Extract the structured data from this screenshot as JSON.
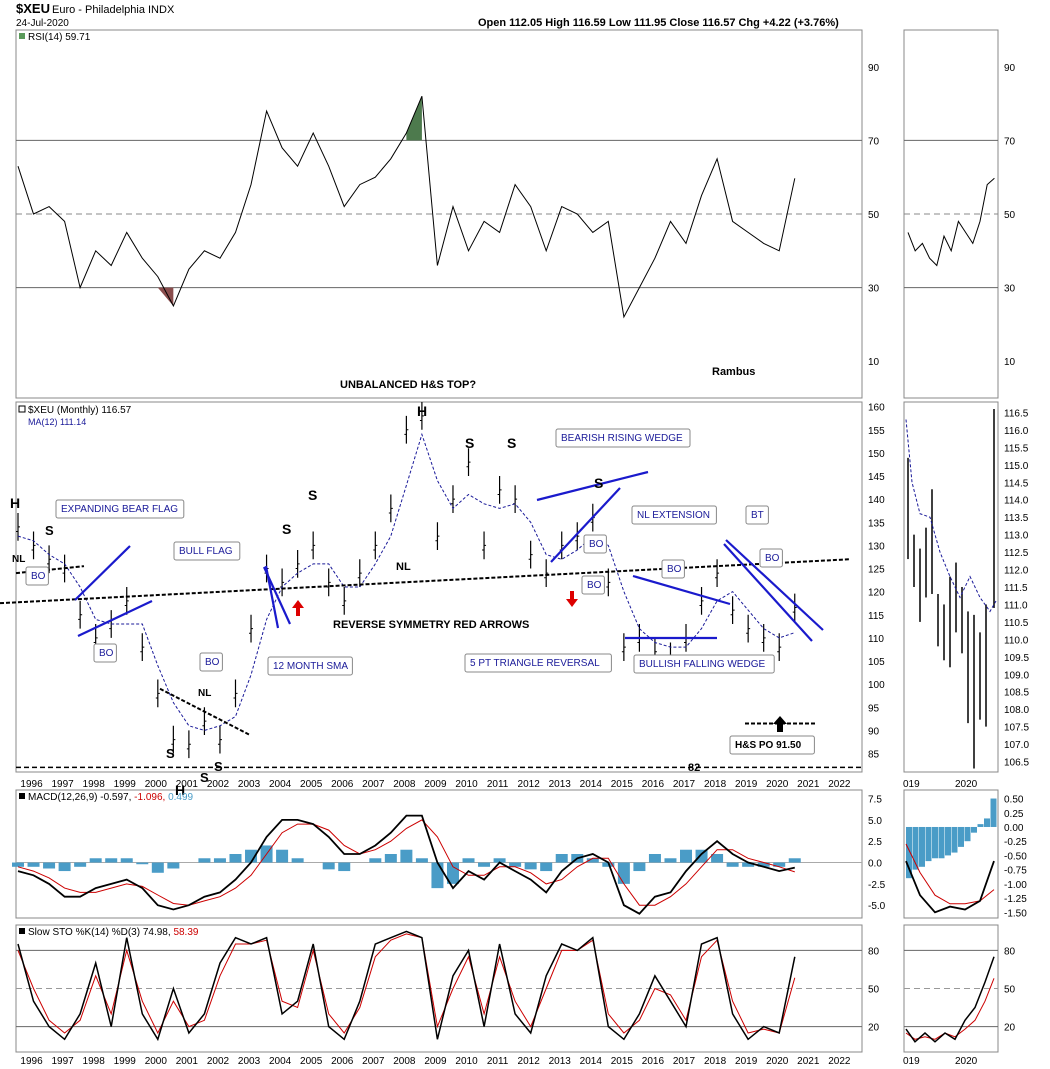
{
  "header": {
    "symbol": "$XEU",
    "name": "Euro - Philadelphia INDX",
    "date": "24-Jul-2020",
    "ohlc": "Open 112.05  High 116.59  Low 111.95  Close 116.57  Chg +4.22 (+3.76%)"
  },
  "chart_data": [
    {
      "type": "line",
      "panel": "rsi",
      "legend": "RSI(14) 59.71",
      "yticks": [
        10,
        30,
        50,
        70,
        90
      ],
      "ylim": [
        0,
        100
      ],
      "overbought": 70,
      "oversold": 30,
      "x": [
        1995.5,
        1996,
        1996.5,
        1997,
        1997.5,
        1998,
        1998.5,
        1999,
        1999.5,
        2000,
        2000.5,
        2001,
        2001.5,
        2002,
        2002.5,
        2003,
        2003.5,
        2004,
        2004.5,
        2005,
        2005.5,
        2006,
        2006.5,
        2007,
        2007.5,
        2008,
        2008.5,
        2009,
        2009.5,
        2010,
        2010.5,
        2011,
        2011.5,
        2012,
        2012.5,
        2013,
        2013.5,
        2014,
        2014.5,
        2015,
        2015.5,
        2016,
        2016.5,
        2017,
        2017.5,
        2018,
        2018.5,
        2019,
        2019.5,
        2020,
        2020.5
      ],
      "values": [
        63,
        50,
        52,
        48,
        30,
        40,
        36,
        45,
        38,
        33,
        25,
        35,
        40,
        38,
        45,
        58,
        78,
        68,
        63,
        72,
        63,
        52,
        58,
        60,
        65,
        72,
        82,
        36,
        52,
        40,
        48,
        45,
        58,
        52,
        40,
        52,
        50,
        45,
        48,
        22,
        30,
        38,
        48,
        42,
        55,
        65,
        48,
        45,
        42,
        40,
        59.71
      ]
    },
    {
      "type": "bar",
      "panel": "price",
      "legend_price": "$XEU (Monthly) 116.57",
      "legend_ma": "MA(12) 111.14",
      "yticks": [
        85,
        90,
        95,
        100,
        105,
        110,
        115,
        120,
        125,
        130,
        135,
        140,
        145,
        150,
        155,
        160
      ],
      "ylim": [
        81,
        161
      ],
      "xticks": [
        "1996",
        "1997",
        "1998",
        "1999",
        "2000",
        "2001",
        "2002",
        "2003",
        "2004",
        "2005",
        "2006",
        "2007",
        "2008",
        "2009",
        "2010",
        "2011",
        "2012",
        "2013",
        "2014",
        "2015",
        "2016",
        "2017",
        "2018",
        "2019",
        "2020",
        "2021",
        "2022"
      ],
      "x": [
        1995.5,
        1996,
        1996.5,
        1997,
        1997.5,
        1998,
        1998.5,
        1999,
        1999.5,
        2000,
        2000.5,
        2001,
        2001.5,
        2002,
        2002.5,
        2003,
        2003.5,
        2004,
        2004.5,
        2005,
        2005.5,
        2006,
        2006.5,
        2007,
        2007.5,
        2008,
        2008.5,
        2009,
        2009.5,
        2010,
        2010.5,
        2011,
        2011.5,
        2012,
        2012.5,
        2013,
        2013.5,
        2014,
        2014.5,
        2015,
        2015.5,
        2016,
        2016.5,
        2017,
        2017.5,
        2018,
        2018.5,
        2019,
        2019.5,
        2020,
        2020.5
      ],
      "values": [
        134,
        130,
        127,
        125,
        115,
        110,
        113,
        118,
        108,
        98,
        88,
        87,
        92,
        88,
        98,
        112,
        125,
        122,
        126,
        130,
        122,
        118,
        124,
        130,
        138,
        155,
        158,
        132,
        140,
        148,
        130,
        142,
        140,
        128,
        124,
        130,
        132,
        136,
        122,
        108,
        110,
        107,
        106,
        110,
        118,
        124,
        116,
        112,
        110,
        108,
        116.57
      ],
      "ma": [
        132,
        131,
        128,
        126,
        121,
        114,
        113,
        113,
        113,
        104,
        96,
        91,
        90,
        91,
        93,
        102,
        114,
        121,
        124,
        126,
        126,
        121,
        121,
        126,
        132,
        143,
        154,
        144,
        138,
        141,
        139,
        138,
        139,
        135,
        128,
        127,
        129,
        132,
        130,
        120,
        112,
        109,
        108,
        108,
        112,
        118,
        120,
        116,
        112,
        110,
        111.14
      ],
      "annotations": [
        {
          "text": "UNBALANCED H&S TOP?"
        },
        {
          "text": "Rambus"
        },
        {
          "text": "H"
        },
        {
          "text": "NL"
        },
        {
          "text": "S"
        },
        {
          "text": "EXPANDING BEAR FLAG"
        },
        {
          "text": "BO"
        },
        {
          "text": "BO"
        },
        {
          "text": "BULL FLAG"
        },
        {
          "text": "BO"
        },
        {
          "text": "NL"
        },
        {
          "text": "S"
        },
        {
          "text": "H"
        },
        {
          "text": "S"
        },
        {
          "text": "S"
        },
        {
          "text": "12 MONTH SMA"
        },
        {
          "text": "S"
        },
        {
          "text": "S"
        },
        {
          "text": "NL"
        },
        {
          "text": "H"
        },
        {
          "text": "S"
        },
        {
          "text": "S"
        },
        {
          "text": "REVERSE SYMMETRY RED ARROWS"
        },
        {
          "text": "BEARISH RISING WEDGE"
        },
        {
          "text": "S"
        },
        {
          "text": "BO"
        },
        {
          "text": "BO"
        },
        {
          "text": "NL EXTENSION"
        },
        {
          "text": "BO"
        },
        {
          "text": "BT"
        },
        {
          "text": "BO"
        },
        {
          "text": "5 PT TRIANGLE REVERSAL"
        },
        {
          "text": "BULLISH FALLING WEDGE"
        },
        {
          "text": "82"
        },
        {
          "text": "H&S PO 91.50"
        }
      ]
    },
    {
      "type": "line",
      "panel": "macd",
      "legend_a": "MACD(12,26,9) -0.597,",
      "legend_b": "-1.096,",
      "legend_c": "0.499",
      "yticks": [
        -5.0,
        -2.5,
        0.0,
        2.5,
        5.0,
        7.5
      ],
      "ylim": [
        -6.5,
        8.5
      ],
      "x": [
        1995.5,
        1996,
        1996.5,
        1997,
        1997.5,
        1998,
        1998.5,
        1999,
        1999.5,
        2000,
        2000.5,
        2001,
        2001.5,
        2002,
        2002.5,
        2003,
        2003.5,
        2004,
        2004.5,
        2005,
        2005.5,
        2006,
        2006.5,
        2007,
        2007.5,
        2008,
        2008.5,
        2009,
        2009.5,
        2010,
        2010.5,
        2011,
        2011.5,
        2012,
        2012.5,
        2013,
        2013.5,
        2014,
        2014.5,
        2015,
        2015.5,
        2016,
        2016.5,
        2017,
        2017.5,
        2018,
        2018.5,
        2019,
        2019.5,
        2020,
        2020.5
      ],
      "macd": [
        -1,
        -1.5,
        -2.5,
        -4,
        -4,
        -3,
        -2.5,
        -2,
        -3,
        -5,
        -5.5,
        -5,
        -4,
        -3.5,
        -2,
        0,
        3,
        5,
        5,
        4.5,
        3,
        1,
        1,
        2,
        3.5,
        5.5,
        5.5,
        0,
        -3,
        -1,
        -2,
        0,
        -1,
        -2,
        -3.5,
        -1,
        0.5,
        1,
        0,
        -5,
        -6,
        -4,
        -3.5,
        -1,
        1,
        2.5,
        1,
        0,
        -0.5,
        -1,
        -0.597
      ],
      "signal": [
        -0.5,
        -1,
        -1.8,
        -3,
        -3.5,
        -3.5,
        -3,
        -2.5,
        -2.8,
        -3.8,
        -4.8,
        -5,
        -4.5,
        -4,
        -3,
        -1.5,
        1,
        3.5,
        4.5,
        4.5,
        3.8,
        2,
        1,
        1.5,
        2.5,
        4,
        5,
        3,
        -0.5,
        -1.5,
        -1.5,
        -0.5,
        -0.5,
        -1.2,
        -2.5,
        -2,
        -0.5,
        0.5,
        0.5,
        -2.5,
        -5,
        -5,
        -4,
        -2.5,
        -0.5,
        1.5,
        1.5,
        0.5,
        0,
        -0.5,
        -1.096
      ],
      "hist": [
        -0.5,
        -0.5,
        -0.7,
        -1,
        -0.5,
        0.5,
        0.5,
        0.5,
        -0.2,
        -1.2,
        -0.7,
        0,
        0.5,
        0.5,
        1,
        1.5,
        2,
        1.5,
        0.5,
        0,
        -0.8,
        -1,
        0,
        0.5,
        1,
        1.5,
        0.5,
        -3,
        -2.5,
        0.5,
        -0.5,
        0.5,
        -0.5,
        -0.8,
        -1,
        1,
        1,
        0.5,
        -0.5,
        -2.5,
        -1,
        1,
        0.5,
        1.5,
        1.5,
        1,
        -0.5,
        -0.5,
        -0.5,
        -0.5,
        0.499
      ]
    },
    {
      "type": "line",
      "panel": "sto",
      "legend_a": "Slow STO %K(14) %D(3) 74.98,",
      "legend_b": "58.39",
      "yticks": [
        20,
        50,
        80
      ],
      "ylim": [
        0,
        100
      ],
      "x": [
        1995.5,
        1996,
        1996.5,
        1997,
        1997.5,
        1998,
        1998.5,
        1999,
        1999.5,
        2000,
        2000.5,
        2001,
        2001.5,
        2002,
        2002.5,
        2003,
        2003.5,
        2004,
        2004.5,
        2005,
        2005.5,
        2006,
        2006.5,
        2007,
        2007.5,
        2008,
        2008.5,
        2009,
        2009.5,
        2010,
        2010.5,
        2011,
        2011.5,
        2012,
        2012.5,
        2013,
        2013.5,
        2014,
        2014.5,
        2015,
        2015.5,
        2016,
        2016.5,
        2017,
        2017.5,
        2018,
        2018.5,
        2019,
        2019.5,
        2020,
        2020.5
      ],
      "k": [
        85,
        40,
        20,
        10,
        30,
        70,
        20,
        90,
        30,
        10,
        50,
        15,
        30,
        70,
        90,
        85,
        90,
        30,
        40,
        85,
        20,
        10,
        40,
        85,
        90,
        95,
        90,
        10,
        60,
        80,
        20,
        85,
        30,
        15,
        60,
        85,
        80,
        90,
        20,
        10,
        30,
        60,
        40,
        20,
        85,
        90,
        30,
        10,
        20,
        15,
        74.98
      ],
      "d": [
        80,
        50,
        25,
        15,
        25,
        60,
        30,
        80,
        40,
        15,
        40,
        20,
        25,
        60,
        85,
        85,
        88,
        40,
        35,
        80,
        30,
        15,
        35,
        75,
        88,
        93,
        90,
        20,
        50,
        75,
        30,
        75,
        40,
        20,
        50,
        80,
        80,
        88,
        30,
        15,
        25,
        50,
        45,
        25,
        75,
        88,
        40,
        15,
        18,
        15,
        58.39
      ]
    }
  ],
  "inset": {
    "xticks": [
      "019",
      "2020"
    ],
    "rsi_yticks": [
      90,
      70,
      50,
      30,
      10
    ],
    "price_yticks": [
      "116.5",
      "116.0",
      "115.5",
      "115.0",
      "114.5",
      "114.0",
      "113.5",
      "113.0",
      "112.5",
      "112.0",
      "111.5",
      "111.0",
      "110.5",
      "110.0",
      "109.5",
      "109.0",
      "108.5",
      "108.0",
      "107.5",
      "107.0",
      "106.5"
    ],
    "macd_yticks": [
      "0.50",
      "0.25",
      "0.00",
      "-0.25",
      "-0.50",
      "-0.75",
      "-1.00",
      "-1.25",
      "-1.50"
    ],
    "sto_yticks": [
      80,
      50,
      20
    ]
  },
  "colors": {
    "price": "#000000",
    "ma": "#1a1a99",
    "annotation_line": "#1a1acc",
    "annotation_text": "#1a1a99",
    "macd_hist": "#4a9cc7",
    "signal": "#cc0000",
    "overbought_fill": "#4d7a4d",
    "oversold_fill": "#8a4d4d",
    "arrow_red": "#dd0000"
  }
}
